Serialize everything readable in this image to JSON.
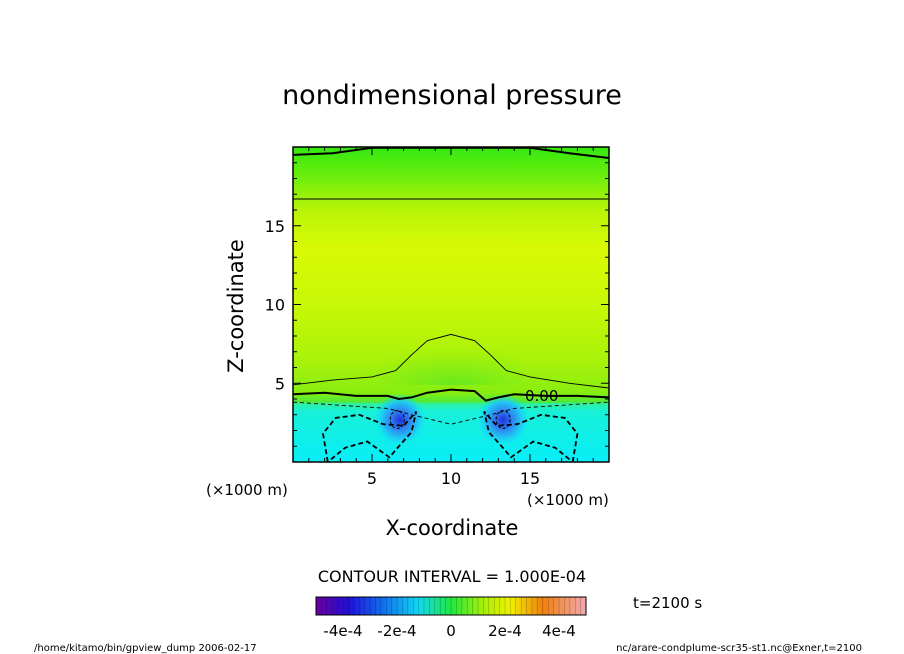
{
  "chart_data": {
    "type": "contour",
    "title": "nondimensional pressure",
    "xlabel": "X-coordinate",
    "ylabel": "Z-coordinate",
    "x_unit": "(×1000 m)",
    "z_unit": "(×1000 m)",
    "xlim": [
      0,
      20
    ],
    "zlim": [
      0,
      20
    ],
    "x_ticks": [
      5,
      10,
      15
    ],
    "z_ticks": [
      5,
      10,
      15
    ],
    "contour_interval_text": "CONTOUR INTERVAL = 1.000E-04",
    "zero_contour_label": "0.00",
    "time_label": "t=2100 s",
    "colorbar": {
      "min": -0.0005,
      "max": 0.0005,
      "tick_labels": [
        "-4e-4",
        "-2e-4",
        "0",
        "2e-4",
        "4e-4"
      ],
      "tick_values": [
        -0.0004,
        -0.0002,
        0,
        0.0002,
        0.0004
      ]
    },
    "contours": [
      {
        "level": 0.0002,
        "style": "solid",
        "x": [
          0,
          2.5,
          5,
          8,
          12,
          15,
          17.5,
          20
        ],
        "z": [
          19.5,
          19.6,
          19.95,
          19.95,
          19.95,
          19.95,
          19.6,
          19.3
        ]
      },
      {
        "level": 0.0001,
        "style": "solid",
        "x": [
          0,
          20
        ],
        "z": [
          16.7,
          16.7
        ]
      },
      {
        "level": 0.0001,
        "style": "solid",
        "x": [
          0,
          2.5,
          5,
          6.5,
          7.5,
          8.5,
          10,
          11.5,
          12.5,
          13.5,
          15,
          17.5,
          20
        ],
        "z": [
          4.9,
          5.2,
          5.4,
          5.8,
          6.8,
          7.7,
          8.1,
          7.7,
          6.8,
          5.8,
          5.4,
          5.0,
          4.7
        ]
      },
      {
        "level": 0.0,
        "style": "solid",
        "x": [
          0,
          2,
          4,
          6,
          6.7,
          7.5,
          8.5,
          10,
          11.5,
          12.2,
          13,
          14,
          16,
          18,
          20
        ],
        "z": [
          4.3,
          4.4,
          4.2,
          4.2,
          4.0,
          4.1,
          4.4,
          4.6,
          4.5,
          3.9,
          4.1,
          4.3,
          4.2,
          4.2,
          4.1
        ]
      },
      {
        "level": -0.0001,
        "style": "dashed",
        "x": [
          0,
          3,
          6,
          7.5,
          10,
          12.5,
          14,
          17,
          20
        ],
        "z": [
          3.8,
          3.6,
          3.4,
          3.0,
          2.4,
          3.0,
          3.4,
          3.6,
          3.8
        ]
      }
    ],
    "negative_cells": [
      {
        "center_x": 4.5,
        "outer_level": -0.0002,
        "inner_level": -0.0003,
        "core_x": 6.6,
        "core_z": 2.7
      },
      {
        "center_x": 15.4,
        "outer_level": -0.0002,
        "inner_level": -0.0003,
        "core_x": 13.3,
        "core_z": 2.7
      }
    ]
  },
  "footer": {
    "left": "/home/kitamo/bin/gpview_dump  2006-02-17",
    "right": "nc/arare-condplume-scr35-st1.nc@Exner,t=2100"
  }
}
